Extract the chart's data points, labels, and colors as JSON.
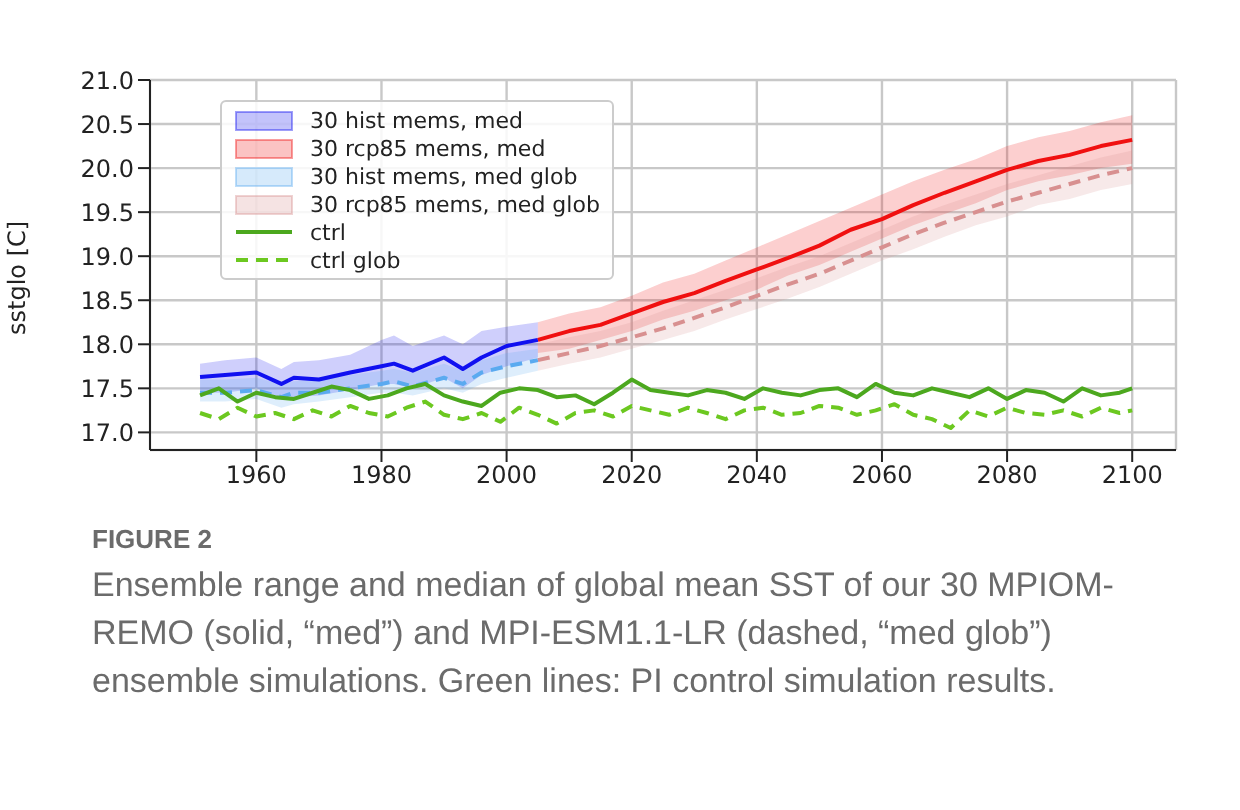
{
  "chart_data": {
    "type": "line",
    "ylabel": "sstglo [C]",
    "xlim": [
      1943,
      2107
    ],
    "xticks": [
      1960,
      1980,
      2000,
      2020,
      2040,
      2060,
      2080,
      2100
    ],
    "ylim": [
      16.8,
      21.0
    ],
    "yticks": [
      {
        "value": 17,
        "label": "17.0"
      },
      {
        "value": 17.5,
        "label": "17.5"
      },
      {
        "value": 18,
        "label": "18.0"
      },
      {
        "value": 18.5,
        "label": "18.5"
      },
      {
        "value": 19,
        "label": "19.0"
      },
      {
        "value": 19.5,
        "label": "19.5"
      },
      {
        "value": 20,
        "label": "20.0"
      },
      {
        "value": 20.5,
        "label": "20.5"
      },
      {
        "value": 21,
        "label": "21.0"
      }
    ],
    "grid": true,
    "legend": "top left",
    "line_style": "solid",
    "series": [
      {
        "name": "30 hist mems, med",
        "color": "#1010f0",
        "x": [
          1951,
          1955,
          1960,
          1964,
          1966,
          1970,
          1975,
          1980,
          1982,
          1985,
          1990,
          1993,
          1996,
          2000,
          2005
        ],
        "values": [
          17.63,
          17.65,
          17.68,
          17.55,
          17.62,
          17.6,
          17.68,
          17.75,
          17.78,
          17.7,
          17.85,
          17.72,
          17.85,
          17.98,
          18.05
        ],
        "lower": [
          17.45,
          17.45,
          17.5,
          17.38,
          17.4,
          17.42,
          17.48,
          17.55,
          17.55,
          17.5,
          17.62,
          17.5,
          17.65,
          17.75,
          17.85
        ],
        "upper": [
          17.78,
          17.82,
          17.85,
          17.72,
          17.8,
          17.82,
          17.88,
          18.05,
          18.1,
          17.98,
          18.1,
          18.0,
          18.15,
          18.2,
          18.25
        ]
      },
      {
        "name": "30 rcp85 mems, med",
        "color": "#f01010",
        "x": [
          2005,
          2010,
          2015,
          2020,
          2025,
          2030,
          2035,
          2040,
          2045,
          2050,
          2055,
          2060,
          2065,
          2070,
          2075,
          2080,
          2085,
          2090,
          2095,
          2100
        ],
        "values": [
          18.05,
          18.15,
          18.22,
          18.35,
          18.48,
          18.58,
          18.72,
          18.85,
          18.98,
          19.12,
          19.3,
          19.42,
          19.58,
          19.72,
          19.85,
          19.98,
          20.08,
          20.15,
          20.25,
          20.32
        ],
        "lower": [
          17.9,
          17.95,
          18.05,
          18.15,
          18.28,
          18.38,
          18.5,
          18.62,
          18.78,
          18.9,
          19.05,
          19.2,
          19.35,
          19.48,
          19.6,
          19.75,
          19.85,
          19.92,
          20.0,
          20.05
        ],
        "upper": [
          18.25,
          18.35,
          18.42,
          18.55,
          18.7,
          18.8,
          18.95,
          19.1,
          19.25,
          19.4,
          19.55,
          19.7,
          19.85,
          19.98,
          20.1,
          20.25,
          20.35,
          20.42,
          20.52,
          20.6
        ]
      },
      {
        "name": "30 hist mems, med glob",
        "color": "#5aaaf0",
        "line_style": "dashed",
        "x": [
          1951,
          1955,
          1960,
          1964,
          1966,
          1970,
          1975,
          1980,
          1982,
          1985,
          1990,
          1993,
          1996,
          2000,
          2005
        ],
        "values": [
          17.45,
          17.45,
          17.48,
          17.4,
          17.45,
          17.45,
          17.5,
          17.55,
          17.58,
          17.52,
          17.62,
          17.55,
          17.68,
          17.75,
          17.82
        ],
        "lower": [
          17.35,
          17.35,
          17.38,
          17.28,
          17.32,
          17.35,
          17.4,
          17.45,
          17.45,
          17.42,
          17.5,
          17.45,
          17.55,
          17.62,
          17.7
        ],
        "upper": [
          17.6,
          17.6,
          17.62,
          17.55,
          17.58,
          17.6,
          17.65,
          17.7,
          17.72,
          17.68,
          17.78,
          17.7,
          17.82,
          17.9,
          17.95
        ]
      },
      {
        "name": "30 rcp85 mems, med glob",
        "color": "#d89090",
        "line_style": "dashed",
        "x": [
          2005,
          2010,
          2015,
          2020,
          2025,
          2030,
          2035,
          2040,
          2045,
          2050,
          2055,
          2060,
          2065,
          2070,
          2075,
          2080,
          2085,
          2090,
          2095,
          2100
        ],
        "values": [
          17.82,
          17.9,
          17.98,
          18.08,
          18.18,
          18.3,
          18.42,
          18.55,
          18.68,
          18.8,
          18.95,
          19.1,
          19.25,
          19.38,
          19.5,
          19.62,
          19.72,
          19.82,
          19.92,
          20.0
        ],
        "lower": [
          17.7,
          17.78,
          17.85,
          17.95,
          18.05,
          18.15,
          18.28,
          18.4,
          18.52,
          18.65,
          18.8,
          18.95,
          19.08,
          19.22,
          19.35,
          19.45,
          19.58,
          19.65,
          19.75,
          19.82
        ],
        "upper": [
          18.0,
          18.08,
          18.15,
          18.25,
          18.38,
          18.5,
          18.62,
          18.75,
          18.88,
          19.0,
          19.15,
          19.3,
          19.45,
          19.58,
          19.7,
          19.82,
          19.92,
          20.02,
          20.12,
          20.2
        ]
      },
      {
        "name": "ctrl",
        "color": "#4ca81e",
        "x": [
          1951,
          1954,
          1957,
          1960,
          1963,
          1966,
          1969,
          1972,
          1975,
          1978,
          1981,
          1984,
          1987,
          1990,
          1993,
          1996,
          1999,
          2002,
          2005,
          2008,
          2011,
          2014,
          2017,
          2020,
          2023,
          2026,
          2029,
          2032,
          2035,
          2038,
          2041,
          2044,
          2047,
          2050,
          2053,
          2056,
          2059,
          2062,
          2065,
          2068,
          2071,
          2074,
          2077,
          2080,
          2083,
          2086,
          2089,
          2092,
          2095,
          2098,
          2100
        ],
        "values": [
          17.42,
          17.5,
          17.35,
          17.45,
          17.4,
          17.38,
          17.45,
          17.52,
          17.48,
          17.38,
          17.42,
          17.5,
          17.55,
          17.42,
          17.35,
          17.3,
          17.45,
          17.5,
          17.48,
          17.4,
          17.42,
          17.32,
          17.45,
          17.6,
          17.48,
          17.45,
          17.42,
          17.48,
          17.45,
          17.38,
          17.5,
          17.45,
          17.42,
          17.48,
          17.5,
          17.4,
          17.55,
          17.45,
          17.42,
          17.5,
          17.45,
          17.4,
          17.5,
          17.38,
          17.48,
          17.45,
          17.35,
          17.5,
          17.42,
          17.45,
          17.5
        ]
      },
      {
        "name": "ctrl glob",
        "color": "#6cc820",
        "line_style": "dashed",
        "x": [
          1951,
          1954,
          1957,
          1960,
          1963,
          1966,
          1969,
          1972,
          1975,
          1978,
          1981,
          1984,
          1987,
          1990,
          1993,
          1996,
          1999,
          2002,
          2005,
          2008,
          2011,
          2014,
          2017,
          2020,
          2023,
          2026,
          2029,
          2032,
          2035,
          2038,
          2041,
          2044,
          2047,
          2050,
          2053,
          2056,
          2059,
          2062,
          2065,
          2068,
          2071,
          2074,
          2077,
          2080,
          2083,
          2086,
          2089,
          2092,
          2095,
          2098,
          2100
        ],
        "values": [
          17.22,
          17.15,
          17.28,
          17.18,
          17.22,
          17.15,
          17.25,
          17.18,
          17.3,
          17.22,
          17.18,
          17.28,
          17.35,
          17.2,
          17.15,
          17.22,
          17.12,
          17.28,
          17.2,
          17.1,
          17.22,
          17.25,
          17.18,
          17.3,
          17.25,
          17.2,
          17.28,
          17.22,
          17.15,
          17.25,
          17.28,
          17.2,
          17.22,
          17.3,
          17.28,
          17.2,
          17.25,
          17.32,
          17.2,
          17.15,
          17.05,
          17.25,
          17.18,
          17.28,
          17.22,
          17.2,
          17.25,
          17.18,
          17.28,
          17.22,
          17.25
        ]
      }
    ],
    "annotations": [
      "FIGURE 2",
      "Ensemble range and median of global mean SST of our 30 MPIOM-REMO (solid, “med”) and MPI-ESM1.1-LR (dashed, “med glob”) ensemble simulations. Green lines: PI control simulation results."
    ]
  }
}
